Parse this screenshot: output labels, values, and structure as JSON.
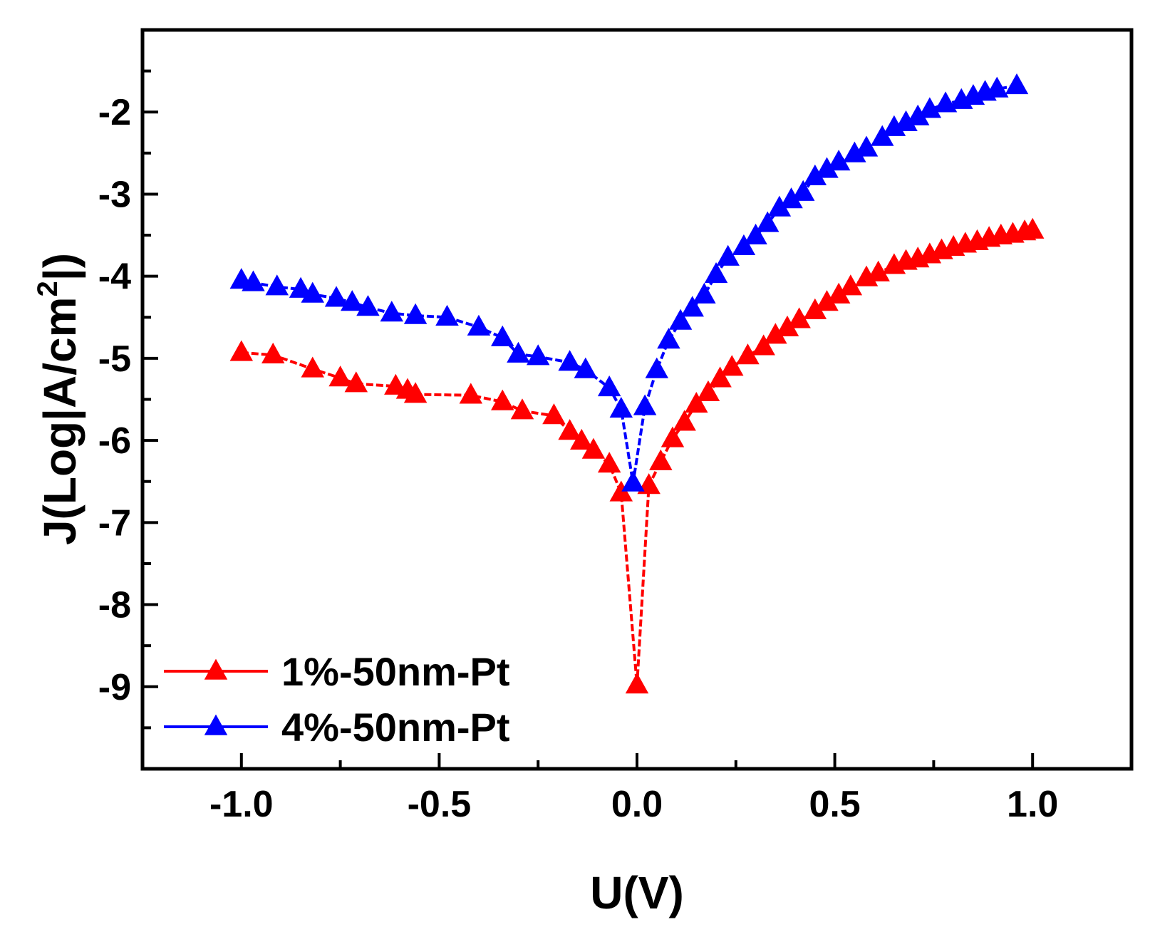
{
  "chart_data": {
    "type": "line",
    "title": "",
    "xlabel": "U(V)",
    "ylabel_main": "J(Log|A/cm",
    "ylabel_sup": "2",
    "ylabel_end": "|)",
    "xlim": [
      -1.25,
      1.25
    ],
    "ylim": [
      -10,
      -1
    ],
    "x_ticks": [
      -1.0,
      -0.5,
      0.0,
      0.5,
      1.0
    ],
    "x_tick_labels": [
      "-1.0",
      "-0.5",
      "0.0",
      "0.5",
      "1.0"
    ],
    "y_ticks": [
      -9,
      -8,
      -7,
      -6,
      -5,
      -4,
      -3,
      -2
    ],
    "y_tick_labels": [
      "-9",
      "-8",
      "-7",
      "-6",
      "-5",
      "-4",
      "-3",
      "-2"
    ],
    "legend_position": "bottom-left",
    "series": [
      {
        "name": "1%-50nm-Pt",
        "color": "#ff0000",
        "marker": "triangle",
        "x": [
          -1.0,
          -0.92,
          -0.82,
          -0.75,
          -0.71,
          -0.61,
          -0.58,
          -0.56,
          -0.42,
          -0.34,
          -0.29,
          -0.21,
          -0.17,
          -0.14,
          -0.11,
          -0.07,
          -0.04,
          0.0,
          0.03,
          0.06,
          0.09,
          0.12,
          0.15,
          0.18,
          0.21,
          0.24,
          0.28,
          0.32,
          0.35,
          0.38,
          0.41,
          0.45,
          0.48,
          0.51,
          0.54,
          0.58,
          0.61,
          0.65,
          0.68,
          0.71,
          0.74,
          0.77,
          0.8,
          0.83,
          0.86,
          0.89,
          0.92,
          0.95,
          0.98,
          1.0
        ],
        "y": [
          -4.93,
          -4.96,
          -5.13,
          -5.24,
          -5.31,
          -5.34,
          -5.39,
          -5.44,
          -5.45,
          -5.53,
          -5.64,
          -5.7,
          -5.89,
          -6.01,
          -6.12,
          -6.29,
          -6.64,
          -8.98,
          -6.55,
          -6.26,
          -5.98,
          -5.78,
          -5.56,
          -5.42,
          -5.25,
          -5.11,
          -4.97,
          -4.86,
          -4.72,
          -4.63,
          -4.53,
          -4.42,
          -4.32,
          -4.23,
          -4.13,
          -4.02,
          -3.96,
          -3.87,
          -3.82,
          -3.79,
          -3.74,
          -3.69,
          -3.65,
          -3.61,
          -3.58,
          -3.54,
          -3.51,
          -3.49,
          -3.46,
          -3.44
        ]
      },
      {
        "name": "4%-50nm-Pt",
        "color": "#0000ff",
        "marker": "triangle",
        "x": [
          -1.0,
          -0.97,
          -0.91,
          -0.85,
          -0.82,
          -0.76,
          -0.72,
          -0.68,
          -0.62,
          -0.56,
          -0.48,
          -0.4,
          -0.34,
          -0.3,
          -0.25,
          -0.17,
          -0.13,
          -0.07,
          -0.04,
          -0.01,
          0.02,
          0.05,
          0.08,
          0.11,
          0.14,
          0.17,
          0.2,
          0.23,
          0.27,
          0.3,
          0.33,
          0.36,
          0.39,
          0.42,
          0.45,
          0.48,
          0.51,
          0.55,
          0.58,
          0.62,
          0.65,
          0.68,
          0.71,
          0.74,
          0.78,
          0.82,
          0.85,
          0.88,
          0.91,
          0.96
        ],
        "y": [
          -4.05,
          -4.08,
          -4.13,
          -4.16,
          -4.22,
          -4.27,
          -4.32,
          -4.38,
          -4.45,
          -4.48,
          -4.5,
          -4.62,
          -4.75,
          -4.95,
          -4.98,
          -5.05,
          -5.14,
          -5.36,
          -5.62,
          -6.52,
          -5.59,
          -5.14,
          -4.78,
          -4.55,
          -4.39,
          -4.23,
          -3.98,
          -3.77,
          -3.64,
          -3.51,
          -3.36,
          -3.17,
          -3.07,
          -2.98,
          -2.79,
          -2.7,
          -2.61,
          -2.51,
          -2.44,
          -2.31,
          -2.19,
          -2.13,
          -2.06,
          -1.97,
          -1.9,
          -1.86,
          -1.81,
          -1.76,
          -1.72,
          -1.68
        ]
      }
    ]
  }
}
